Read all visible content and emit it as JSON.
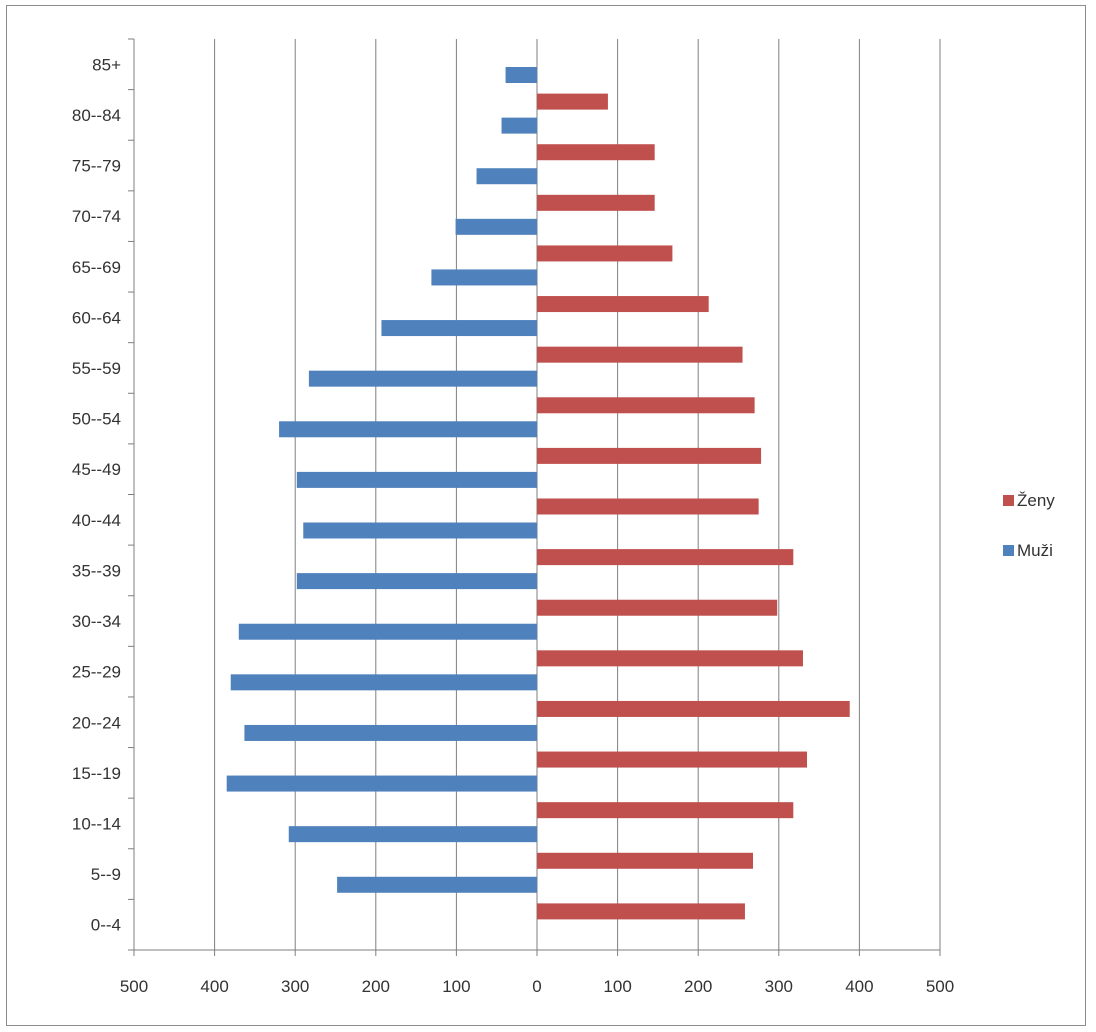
{
  "chart_data": {
    "type": "bar",
    "orientation": "horizontal",
    "layout": "population-pyramid",
    "categories": [
      "0--4",
      "5--9",
      "10--14",
      "15--19",
      "20--24",
      "25--29",
      "30--34",
      "35--39",
      "40--44",
      "45--49",
      "50--54",
      "55--59",
      "60--64",
      "65--69",
      "70--74",
      "75--79",
      "80--84",
      "85+"
    ],
    "series": [
      {
        "name": "Ženy",
        "color": "#c0504d",
        "side": "right",
        "values": [
          258,
          268,
          318,
          335,
          388,
          330,
          298,
          318,
          275,
          278,
          270,
          255,
          213,
          168,
          146,
          146,
          88,
          0
        ]
      },
      {
        "name": "Muži",
        "color": "#4f81bd",
        "side": "left",
        "values": [
          0,
          248,
          308,
          385,
          363,
          380,
          370,
          298,
          290,
          298,
          320,
          283,
          193,
          131,
          101,
          75,
          44,
          39
        ]
      }
    ],
    "x_ticks": [
      "500",
      "400",
      "300",
      "200",
      "100",
      "0",
      "100",
      "200",
      "300",
      "400",
      "500"
    ],
    "xlim": [
      -500,
      500
    ],
    "grid": "vertical",
    "legend": "right"
  }
}
